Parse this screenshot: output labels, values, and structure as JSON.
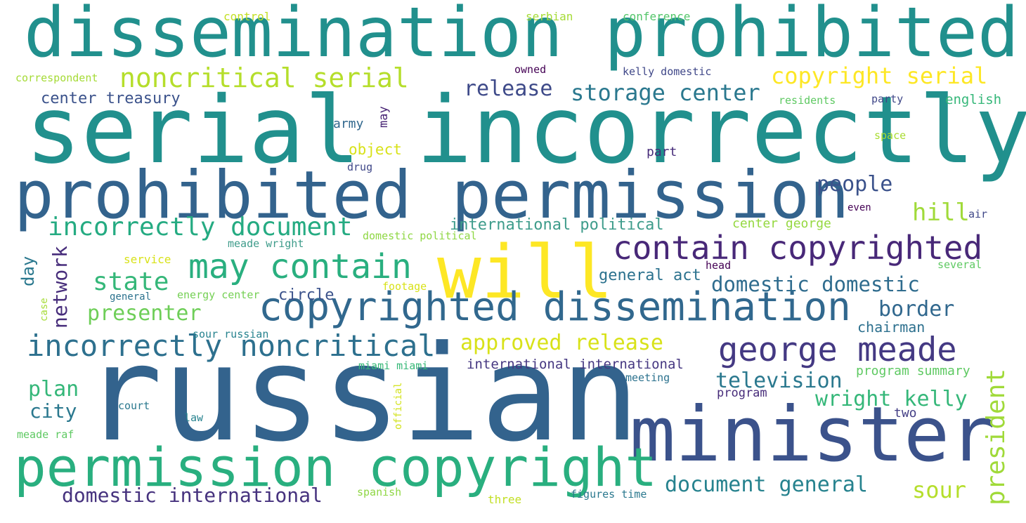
{
  "words": [
    {
      "text": "russian",
      "color": "#33638d"
    },
    {
      "text": "serial incorrectly",
      "color": "#21908d"
    },
    {
      "text": "dissemination prohibited",
      "color": "#21908d"
    },
    {
      "text": "prohibited permission",
      "color": "#33638d"
    },
    {
      "text": "will",
      "color": "#fde725"
    },
    {
      "text": "minister",
      "color": "#3b528b"
    },
    {
      "text": "permission copyright",
      "color": "#29af7f"
    },
    {
      "text": "copyrighted dissemination",
      "color": "#31688e"
    },
    {
      "text": "contain copyrighted",
      "color": "#482878"
    },
    {
      "text": "may contain",
      "color": "#29af7f"
    },
    {
      "text": "george meade",
      "color": "#443983"
    },
    {
      "text": "incorrectly noncritical",
      "color": "#2d708e"
    },
    {
      "text": "noncritical serial",
      "color": "#b5de2b"
    },
    {
      "text": "incorrectly document",
      "color": "#25ab82"
    },
    {
      "text": "copyright serial",
      "color": "#fde725"
    },
    {
      "text": "storage center",
      "color": "#2a788e"
    },
    {
      "text": "release",
      "color": "#3e4a89"
    },
    {
      "text": "state",
      "color": "#35b779"
    },
    {
      "text": "approved release",
      "color": "#d8e219"
    },
    {
      "text": "domestic domestic",
      "color": "#2f6c8e"
    },
    {
      "text": "document general",
      "color": "#26828e"
    },
    {
      "text": "domestic international",
      "color": "#46327e"
    },
    {
      "text": "people",
      "color": "#3b528b"
    },
    {
      "text": "presenter",
      "color": "#6ece58"
    },
    {
      "text": "television",
      "color": "#2a788e"
    },
    {
      "text": "border",
      "color": "#31688e"
    },
    {
      "text": "hill",
      "color": "#a0da39"
    },
    {
      "text": "network",
      "color": "#472d7b"
    },
    {
      "text": "president",
      "color": "#a0da39"
    },
    {
      "text": "wright kelly",
      "color": "#35b779"
    },
    {
      "text": "sour",
      "color": "#b5de2b"
    },
    {
      "text": "plan",
      "color": "#35b779"
    },
    {
      "text": "city",
      "color": "#2a788e"
    },
    {
      "text": "center treasury",
      "color": "#3b528b"
    },
    {
      "text": "day",
      "color": "#2a788e"
    },
    {
      "text": "international political",
      "color": "#3e9c8b"
    },
    {
      "text": "general act",
      "color": "#2c728e"
    },
    {
      "text": "circle",
      "color": "#3b528b"
    },
    {
      "text": "chairman",
      "color": "#2d708e"
    },
    {
      "text": "international international",
      "color": "#453781"
    },
    {
      "text": "object",
      "color": "#d8e219"
    },
    {
      "text": "center george",
      "color": "#95d840"
    },
    {
      "text": "program summary",
      "color": "#5ec962"
    },
    {
      "text": "english",
      "color": "#35b779"
    },
    {
      "text": "two",
      "color": "#433e85"
    },
    {
      "text": "army",
      "color": "#31688e"
    },
    {
      "text": "may",
      "color": "#482475"
    },
    {
      "text": "part",
      "color": "#472c7a"
    },
    {
      "text": "program",
      "color": "#472c7a"
    },
    {
      "text": "control",
      "color": "#c2df23"
    },
    {
      "text": "serbian",
      "color": "#a5db36"
    },
    {
      "text": "conference",
      "color": "#52c569"
    },
    {
      "text": "correspondent",
      "color": "#a5db36"
    },
    {
      "text": "owned",
      "color": "#440154"
    },
    {
      "text": "kelly domestic",
      "color": "#3f4788"
    },
    {
      "text": "residents",
      "color": "#5ec962"
    },
    {
      "text": "party",
      "color": "#3f4788"
    },
    {
      "text": "space",
      "color": "#aadc32"
    },
    {
      "text": "drug",
      "color": "#3f4788"
    },
    {
      "text": "even",
      "color": "#440154"
    },
    {
      "text": "air",
      "color": "#3f4788"
    },
    {
      "text": "domestic political",
      "color": "#8fd744"
    },
    {
      "text": "meade wright",
      "color": "#3f9c8b"
    },
    {
      "text": "service",
      "color": "#d8e219"
    },
    {
      "text": "head",
      "color": "#440154"
    },
    {
      "text": "several",
      "color": "#5ec962"
    },
    {
      "text": "general",
      "color": "#2c728e"
    },
    {
      "text": "energy center",
      "color": "#75d054"
    },
    {
      "text": "footage",
      "color": "#d8e219"
    },
    {
      "text": "case",
      "color": "#a5db36"
    },
    {
      "text": "sour russian",
      "color": "#26828e"
    },
    {
      "text": "miami miami",
      "color": "#37b878"
    },
    {
      "text": "meeting",
      "color": "#2c728e"
    },
    {
      "text": "official",
      "color": "#d2e21b"
    },
    {
      "text": "court",
      "color": "#2a788e"
    },
    {
      "text": "law",
      "color": "#26828e"
    },
    {
      "text": "meade raf",
      "color": "#5ec962"
    },
    {
      "text": "spanish",
      "color": "#8fd744"
    },
    {
      "text": "three",
      "color": "#c2df23"
    },
    {
      "text": "figures time",
      "color": "#2a788e"
    }
  ]
}
